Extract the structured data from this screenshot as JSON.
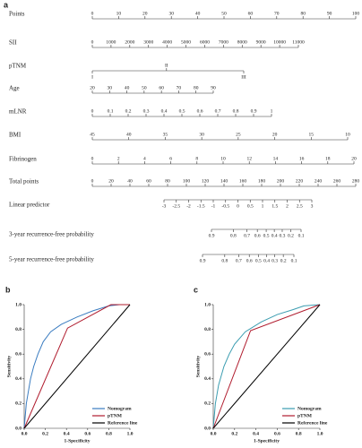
{
  "chart_data": [
    {
      "type": "nomogram",
      "panel_label": "a",
      "rows": [
        {
          "label": "Points",
          "xlim": [
            0,
            100
          ],
          "xticks": [
            0,
            10,
            20,
            30,
            40,
            50,
            60,
            70,
            80,
            90,
            100
          ]
        },
        {
          "label": "SII",
          "xlim": [
            0,
            11000
          ],
          "xticks": [
            0,
            1000,
            2000,
            3000,
            4000,
            5000,
            6000,
            7000,
            8000,
            9000,
            10000,
            11000
          ]
        },
        {
          "label": "pTNM",
          "categories": [
            "I",
            "II",
            "III"
          ]
        },
        {
          "label": "Age",
          "xlim": [
            20,
            90
          ],
          "xticks": [
            20,
            30,
            40,
            50,
            60,
            70,
            80,
            90
          ]
        },
        {
          "label": "mLNR",
          "xlim": [
            0,
            1
          ],
          "xticks": [
            0,
            0.1,
            0.2,
            0.3,
            0.4,
            0.5,
            0.6,
            0.7,
            0.8,
            0.9,
            1
          ]
        },
        {
          "label": "BMI",
          "xlim": [
            45,
            10
          ],
          "xticks": [
            45,
            40,
            35,
            30,
            25,
            20,
            15,
            10
          ]
        },
        {
          "label": "Fibrinogen",
          "xlim": [
            0,
            20
          ],
          "xticks": [
            0,
            2,
            4,
            6,
            8,
            10,
            12,
            14,
            16,
            18,
            20
          ]
        },
        {
          "label": "Total points",
          "xlim": [
            0,
            280
          ],
          "xticks": [
            0,
            20,
            40,
            60,
            80,
            100,
            120,
            140,
            160,
            180,
            200,
            220,
            240,
            260,
            280
          ]
        },
        {
          "label": "Linear predictor",
          "xlim": [
            -3,
            3
          ],
          "xticks": [
            -3,
            -2.5,
            -2,
            -1.5,
            -1,
            -0.5,
            0,
            0.5,
            1,
            1.5,
            2,
            2.5,
            3
          ]
        },
        {
          "label": "3-year recurrence-free probability",
          "scale": "cloglog",
          "xlim": [
            0.9,
            0.1
          ],
          "xticks": [
            0.9,
            0.8,
            0.7,
            0.6,
            0.5,
            0.4,
            0.3,
            0.2,
            0.1
          ]
        },
        {
          "label": "5-year recurrence-free probability",
          "scale": "cloglog",
          "xlim": [
            0.9,
            0.1
          ],
          "xticks": [
            0.9,
            0.8,
            0.7,
            0.6,
            0.5,
            0.4,
            0.3,
            0.2,
            0.1
          ]
        }
      ]
    },
    {
      "type": "line",
      "panel_label": "b",
      "xlabel": "1-Specificity",
      "ylabel": "Sensitivity",
      "xlim": [
        0,
        1
      ],
      "ylim": [
        0,
        1
      ],
      "xticks": [
        {
          "value": 0,
          "label": "0.0"
        },
        0.2,
        0.4,
        0.6,
        0.8,
        {
          "value": 1,
          "label": "1.0"
        }
      ],
      "yticks": [
        {
          "value": 0,
          "label": "0.0"
        },
        0.2,
        0.4,
        0.6,
        0.8,
        {
          "value": 1,
          "label": "1.0"
        }
      ],
      "legend": "lower right",
      "series": [
        {
          "name": "Nomogram",
          "color": "#3a7cc0",
          "x": [
            0,
            0.01,
            0.02,
            0.04,
            0.06,
            0.09,
            0.13,
            0.18,
            0.25,
            0.35,
            0.5,
            0.65,
            0.8,
            0.9,
            1
          ],
          "values": [
            0,
            0.1,
            0.2,
            0.3,
            0.4,
            0.5,
            0.6,
            0.7,
            0.78,
            0.84,
            0.9,
            0.95,
            0.99,
            1,
            1
          ]
        },
        {
          "name": "pTNM",
          "color": "#b01c2e",
          "x": [
            0,
            0.41,
            0.82,
            1
          ],
          "values": [
            0,
            0.81,
            1,
            1
          ]
        },
        {
          "name": "Reference line",
          "color": "#000000",
          "x": [
            0,
            1
          ],
          "values": [
            0,
            1
          ]
        }
      ]
    },
    {
      "type": "line",
      "panel_label": "c",
      "xlabel": "1-Specificity",
      "ylabel": "Sensitivity",
      "xlim": [
        0,
        1
      ],
      "ylim": [
        0,
        1
      ],
      "xticks": [
        {
          "value": 0,
          "label": "0.0"
        },
        0.2,
        0.4,
        0.6,
        0.8,
        {
          "value": 1,
          "label": "1.0"
        }
      ],
      "yticks": [
        {
          "value": 0,
          "label": "0.0"
        },
        0.2,
        0.4,
        0.6,
        0.8,
        {
          "value": 1,
          "label": "1.0"
        }
      ],
      "legend": "lower right",
      "series": [
        {
          "name": "Nomogram",
          "color": "#3a9cb0",
          "x": [
            0,
            0.02,
            0.05,
            0.1,
            0.15,
            0.2,
            0.3,
            0.45,
            0.6,
            0.75,
            0.85,
            1
          ],
          "values": [
            0,
            0.2,
            0.35,
            0.5,
            0.6,
            0.68,
            0.78,
            0.86,
            0.92,
            0.96,
            0.99,
            1
          ]
        },
        {
          "name": "pTNM",
          "color": "#b01c2e",
          "x": [
            0,
            0.35,
            1
          ],
          "values": [
            0,
            0.79,
            1
          ]
        },
        {
          "name": "Reference line",
          "color": "#000000",
          "x": [
            0,
            1
          ],
          "values": [
            0,
            1
          ]
        }
      ]
    }
  ]
}
